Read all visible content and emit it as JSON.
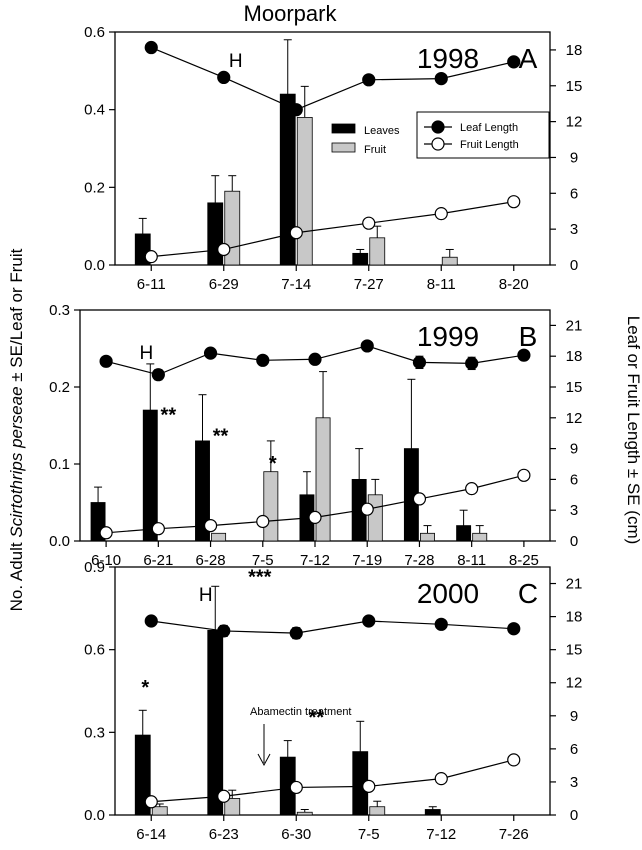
{
  "title": "Moorpark",
  "ylabel_left": "No. Adult Scirtothrips perseae ± SE/Leaf or Fruit",
  "ylabel_left_parts": {
    "pre": "No. Adult ",
    "italic": "Scirtothrips perseae",
    "post": " ± SE/Leaf or Fruit"
  },
  "ylabel_right": "Leaf or Fruit Length ± SE (cm)",
  "legend": {
    "leaves": "Leaves",
    "fruit": "Fruit",
    "leaf_length": "Leaf Length",
    "fruit_length": "Fruit Length"
  },
  "colors": {
    "leaves": "#000000",
    "fruit": "#c8c8c8",
    "leaf_marker": "#000000",
    "fruit_marker": "#ffffff"
  },
  "chart_data": [
    {
      "type": "bar",
      "panel": "A",
      "year": "1998",
      "categories": [
        "6-11",
        "6-29",
        "7-14",
        "7-27",
        "8-11",
        "8-20"
      ],
      "ylim": [
        0,
        0.6
      ],
      "yticks": [
        "0.0",
        "0.2",
        "0.4",
        "0.6"
      ],
      "y2lim": [
        0,
        19.5
      ],
      "y2ticks": [
        "0",
        "3",
        "6",
        "9",
        "12",
        "15",
        "18"
      ],
      "series": [
        {
          "name": "Leaves",
          "values": [
            0.08,
            0.16,
            0.44,
            0.03,
            0.0,
            0.0
          ],
          "se": [
            0.04,
            0.07,
            0.14,
            0.01,
            0.0,
            0.0
          ]
        },
        {
          "name": "Fruit",
          "values": [
            0.0,
            0.19,
            0.38,
            0.07,
            0.02,
            0.0
          ],
          "se": [
            0.0,
            0.04,
            0.08,
            0.03,
            0.02,
            0.0
          ]
        }
      ],
      "lines": [
        {
          "name": "Leaf Length",
          "values": [
            18.2,
            15.7,
            13.0,
            15.5,
            15.6,
            17.0
          ],
          "se": [
            0.2,
            0.2,
            0.4,
            0.4,
            0.2,
            0.3
          ]
        },
        {
          "name": "Fruit Length",
          "values": [
            0.7,
            1.3,
            2.7,
            3.5,
            4.3,
            5.3
          ],
          "se": [
            0.1,
            0.1,
            0.1,
            0.1,
            0.1,
            0.1
          ]
        }
      ],
      "annotations": [
        {
          "text": "H",
          "at": "6-29"
        }
      ],
      "stars": []
    },
    {
      "type": "bar",
      "panel": "B",
      "year": "1999",
      "categories": [
        "6-10",
        "6-21",
        "6-28",
        "7-5",
        "7-12",
        "7-19",
        "7-28",
        "8-11",
        "8-25"
      ],
      "ylim": [
        0,
        0.3
      ],
      "yticks": [
        "0.0",
        "0.1",
        "0.2",
        "0.3"
      ],
      "y2lim": [
        0,
        22.5
      ],
      "y2ticks": [
        "0",
        "3",
        "6",
        "9",
        "12",
        "15",
        "18",
        "21"
      ],
      "series": [
        {
          "name": "Leaves",
          "values": [
            0.05,
            0.17,
            0.13,
            0.0,
            0.06,
            0.08,
            0.12,
            0.02,
            0.0
          ],
          "se": [
            0.02,
            0.06,
            0.06,
            0.0,
            0.03,
            0.04,
            0.09,
            0.02,
            0.0
          ]
        },
        {
          "name": "Fruit",
          "values": [
            0.0,
            0.0,
            0.01,
            0.09,
            0.16,
            0.06,
            0.01,
            0.01,
            0.0
          ],
          "se": [
            0.0,
            0.0,
            0.0,
            0.04,
            0.06,
            0.02,
            0.01,
            0.01,
            0.0
          ]
        }
      ],
      "lines": [
        {
          "name": "Leaf Length",
          "values": [
            17.5,
            16.2,
            18.3,
            17.6,
            17.7,
            19.0,
            17.4,
            17.3,
            18.1
          ],
          "se": [
            0.4,
            0.5,
            0.3,
            0.3,
            0.3,
            0.3,
            0.6,
            0.6,
            0.3
          ]
        },
        {
          "name": "Fruit Length",
          "values": [
            0.8,
            1.2,
            1.5,
            1.9,
            2.3,
            3.1,
            4.1,
            5.1,
            6.4
          ],
          "se": [
            0.1,
            0.1,
            0.1,
            0.1,
            0.1,
            0.1,
            0.1,
            0.1,
            0.1
          ]
        }
      ],
      "annotations": [
        {
          "text": "H",
          "at": "6-21"
        }
      ],
      "stars": [
        {
          "text": "**",
          "at": "6-21",
          "y": 0.155
        },
        {
          "text": "**",
          "at": "6-28",
          "y": 0.128
        },
        {
          "text": "*",
          "at": "7-5",
          "y": 0.092
        }
      ]
    },
    {
      "type": "bar",
      "panel": "C",
      "year": "2000",
      "categories": [
        "6-14",
        "6-23",
        "6-30",
        "7-5",
        "7-12",
        "7-26"
      ],
      "ylim": [
        0,
        0.9
      ],
      "yticks": [
        "0.0",
        "0.3",
        "0.6",
        "0.9"
      ],
      "y2lim": [
        0,
        22.5
      ],
      "y2ticks": [
        "0",
        "3",
        "6",
        "9",
        "12",
        "15",
        "18",
        "21"
      ],
      "series": [
        {
          "name": "Leaves",
          "values": [
            0.29,
            0.67,
            0.21,
            0.23,
            0.02,
            0.0
          ],
          "se": [
            0.09,
            0.16,
            0.06,
            0.11,
            0.01,
            0.0
          ]
        },
        {
          "name": "Fruit",
          "values": [
            0.03,
            0.06,
            0.01,
            0.03,
            0.0,
            0.0
          ],
          "se": [
            0.01,
            0.03,
            0.01,
            0.02,
            0.0,
            0.0
          ]
        }
      ],
      "lines": [
        {
          "name": "Leaf Length",
          "values": [
            17.6,
            16.7,
            16.5,
            17.6,
            17.3,
            16.9
          ],
          "se": [
            0.4,
            0.5,
            0.5,
            0.2,
            0.4,
            0.4
          ]
        },
        {
          "name": "Fruit Length",
          "values": [
            1.2,
            1.7,
            2.5,
            2.6,
            3.3,
            5.0
          ],
          "se": [
            0.1,
            0.1,
            0.1,
            0.1,
            0.1,
            0.1
          ]
        }
      ],
      "annotations": [
        {
          "text": "H",
          "at": "6-23"
        }
      ],
      "stars": [
        {
          "text": "*",
          "at": "6-14",
          "y": 0.44
        },
        {
          "text": "***",
          "at": "6-23",
          "y": 0.84
        },
        {
          "text": "**",
          "at": "6-30",
          "y": 0.33
        }
      ],
      "note": "Abamectin treatment"
    }
  ]
}
